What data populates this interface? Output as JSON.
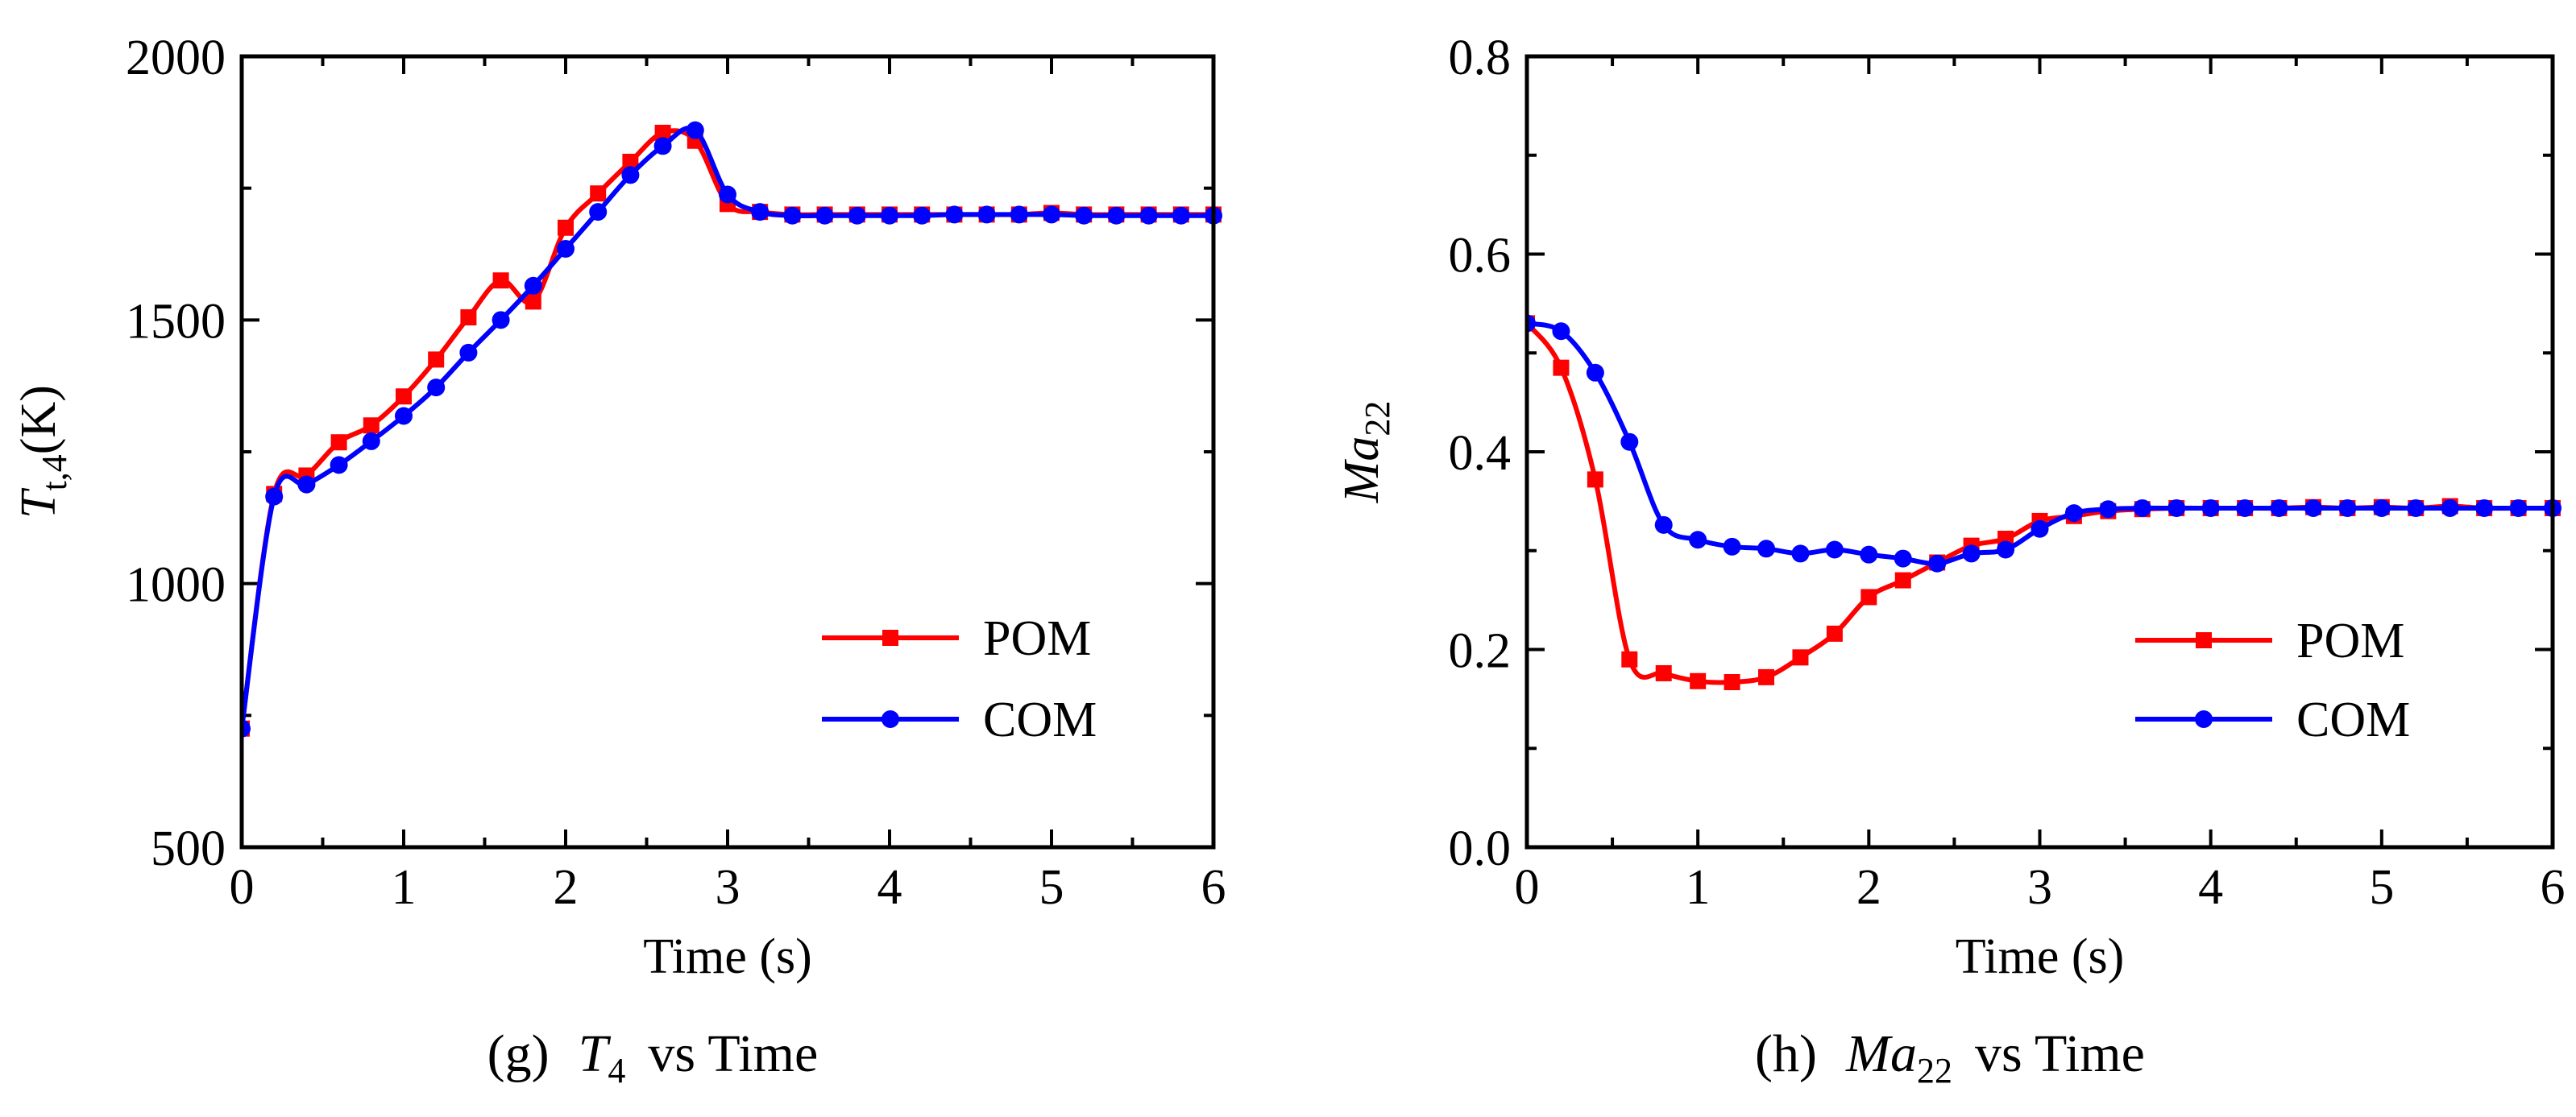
{
  "chart_data": [
    {
      "type": "line",
      "caption": {
        "prefix": "(g)",
        "symbol": "T",
        "sub": "4",
        "suffix": "vs Time"
      },
      "xlabel": "Time (s)",
      "ylabel": {
        "symbol": "T",
        "sub": "t,4",
        "unit": "(K)"
      },
      "xlim": [
        0,
        6
      ],
      "ylim": [
        500,
        2000
      ],
      "xticks": [
        "0",
        "1",
        "2",
        "3",
        "4",
        "5",
        "6"
      ],
      "yticks": [
        "500",
        "1000",
        "1500",
        "2000"
      ],
      "legend": {
        "position": "bottom-right",
        "entries": [
          "POM",
          "COM"
        ]
      },
      "series": [
        {
          "name": "POM",
          "color": "#ff0000",
          "marker": "square",
          "x": [
            0,
            0.2,
            0.4,
            0.6,
            0.8,
            1.0,
            1.2,
            1.4,
            1.6,
            1.8,
            2.0,
            2.2,
            2.4,
            2.6,
            2.8,
            3.0,
            3.2,
            3.4,
            3.6,
            3.8,
            4.0,
            4.2,
            4.4,
            4.6,
            4.8,
            5.0,
            5.2,
            5.4,
            5.6,
            5.8,
            6.0
          ],
          "y": [
            725,
            1170,
            1205,
            1268,
            1300,
            1355,
            1425,
            1505,
            1575,
            1535,
            1675,
            1740,
            1800,
            1855,
            1840,
            1720,
            1705,
            1700,
            1700,
            1700,
            1700,
            1700,
            1700,
            1700,
            1700,
            1703,
            1700,
            1700,
            1700,
            1700,
            1700
          ]
        },
        {
          "name": "COM",
          "color": "#0000ff",
          "marker": "circle",
          "x": [
            0,
            0.2,
            0.4,
            0.6,
            0.8,
            1.0,
            1.2,
            1.4,
            1.6,
            1.8,
            2.0,
            2.2,
            2.4,
            2.6,
            2.8,
            3.0,
            3.2,
            3.4,
            3.6,
            3.8,
            4.0,
            4.2,
            4.4,
            4.6,
            4.8,
            5.0,
            5.2,
            5.4,
            5.6,
            5.8,
            6.0
          ],
          "y": [
            725,
            1165,
            1188,
            1225,
            1270,
            1318,
            1372,
            1438,
            1500,
            1565,
            1635,
            1705,
            1775,
            1830,
            1860,
            1738,
            1705,
            1698,
            1698,
            1698,
            1698,
            1698,
            1700,
            1700,
            1700,
            1700,
            1698,
            1698,
            1698,
            1698,
            1698
          ]
        }
      ]
    },
    {
      "type": "line",
      "caption": {
        "prefix": "(h)",
        "symbol": "Ma",
        "sub": "22",
        "suffix": "vs Time"
      },
      "xlabel": "Time (s)",
      "ylabel": {
        "symbol": "Ma",
        "sub": "22",
        "unit": ""
      },
      "xlim": [
        0,
        6
      ],
      "ylim": [
        0.0,
        0.8
      ],
      "xticks": [
        "0",
        "1",
        "2",
        "3",
        "4",
        "5",
        "6"
      ],
      "yticks": [
        "0.0",
        "0.2",
        "0.4",
        "0.6",
        "0.8"
      ],
      "legend": {
        "position": "bottom-right",
        "entries": [
          "POM",
          "COM"
        ]
      },
      "series": [
        {
          "name": "POM",
          "color": "#ff0000",
          "marker": "square",
          "x": [
            0,
            0.2,
            0.4,
            0.6,
            0.8,
            1.0,
            1.2,
            1.4,
            1.6,
            1.8,
            2.0,
            2.2,
            2.4,
            2.6,
            2.8,
            3.0,
            3.2,
            3.4,
            3.6,
            3.8,
            4.0,
            4.2,
            4.4,
            4.6,
            4.8,
            5.0,
            5.2,
            5.4,
            5.6,
            5.8,
            6.0
          ],
          "y": [
            0.53,
            0.485,
            0.372,
            0.19,
            0.176,
            0.168,
            0.167,
            0.172,
            0.192,
            0.216,
            0.253,
            0.27,
            0.288,
            0.305,
            0.312,
            0.33,
            0.335,
            0.34,
            0.342,
            0.343,
            0.343,
            0.343,
            0.343,
            0.344,
            0.343,
            0.344,
            0.343,
            0.345,
            0.343,
            0.343,
            0.343
          ]
        },
        {
          "name": "COM",
          "color": "#0000ff",
          "marker": "circle",
          "x": [
            0,
            0.2,
            0.4,
            0.6,
            0.8,
            1.0,
            1.2,
            1.4,
            1.6,
            1.8,
            2.0,
            2.2,
            2.4,
            2.6,
            2.8,
            3.0,
            3.2,
            3.4,
            3.6,
            3.8,
            4.0,
            4.2,
            4.4,
            4.6,
            4.8,
            5.0,
            5.2,
            5.4,
            5.6,
            5.8,
            6.0
          ],
          "y": [
            0.53,
            0.522,
            0.48,
            0.41,
            0.326,
            0.311,
            0.304,
            0.302,
            0.297,
            0.301,
            0.296,
            0.292,
            0.287,
            0.297,
            0.301,
            0.322,
            0.338,
            0.342,
            0.343,
            0.343,
            0.343,
            0.343,
            0.343,
            0.343,
            0.343,
            0.343,
            0.343,
            0.343,
            0.343,
            0.343,
            0.343
          ]
        }
      ]
    }
  ]
}
